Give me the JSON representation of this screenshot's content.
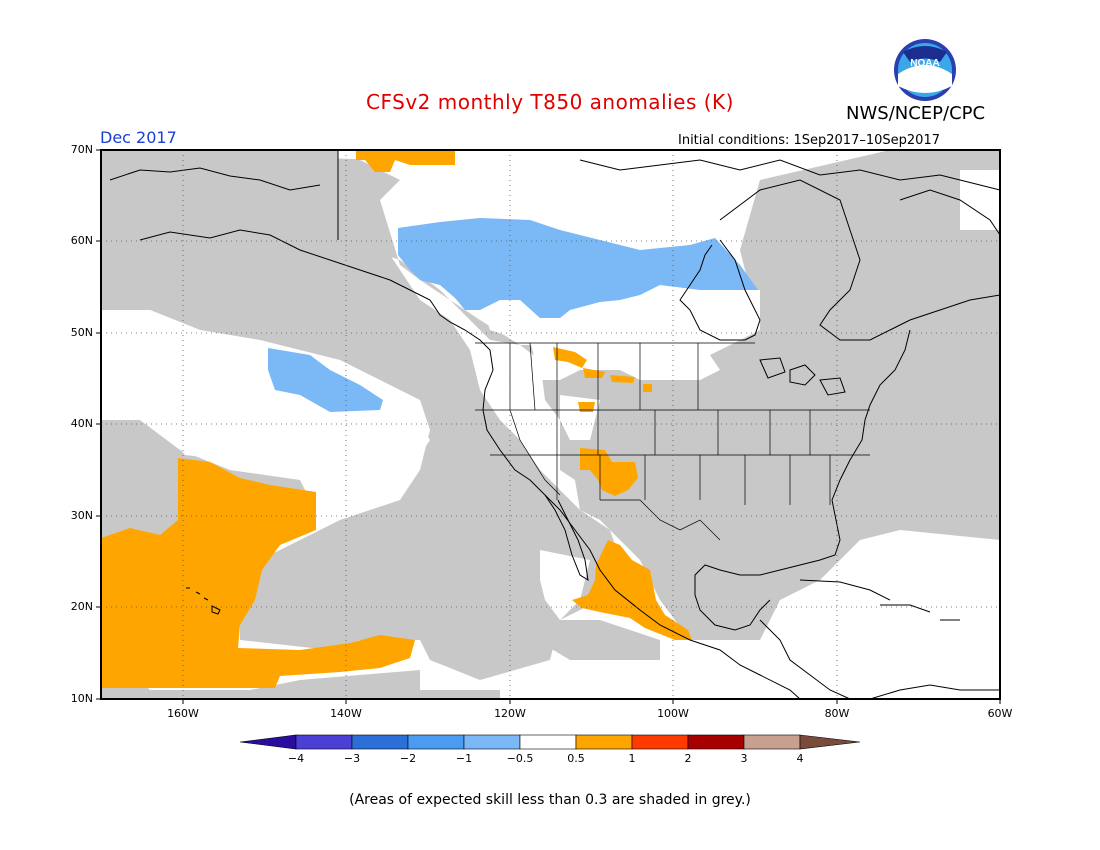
{
  "header": {
    "title": "CFSv2 monthly T850 anomalies (K)",
    "agency": "NWS/NCEP/CPC",
    "logo_text": "NOAA",
    "month": "Dec 2017",
    "initial_conditions": "Initial conditions: 1Sep2017–10Sep2017"
  },
  "map": {
    "lat_labels": [
      "70N",
      "60N",
      "50N",
      "40N",
      "30N",
      "20N",
      "10N"
    ],
    "lon_labels": [
      "160W",
      "140W",
      "120W",
      "100W",
      "80W",
      "60W"
    ],
    "skill_shading_color": "#c8c8c8",
    "colors": {
      "orange": "#ffa500",
      "light_blue": "#7bb8f6",
      "grey": "#c8c8c8"
    }
  },
  "colorbar": {
    "labels": [
      "−4",
      "−3",
      "−2",
      "−1",
      "−0.5",
      "0.5",
      "1",
      "2",
      "3",
      "4"
    ],
    "colors": [
      "#2a0d9e",
      "#4b3fd6",
      "#2d6fd8",
      "#4a9cf2",
      "#7bb8f6",
      "#ffffff",
      "#ffa500",
      "#ff3a00",
      "#a60000",
      "#c8a090",
      "#7a4a3a"
    ]
  },
  "footnote": "(Areas of expected skill less than 0.3 are shaded in grey.)"
}
